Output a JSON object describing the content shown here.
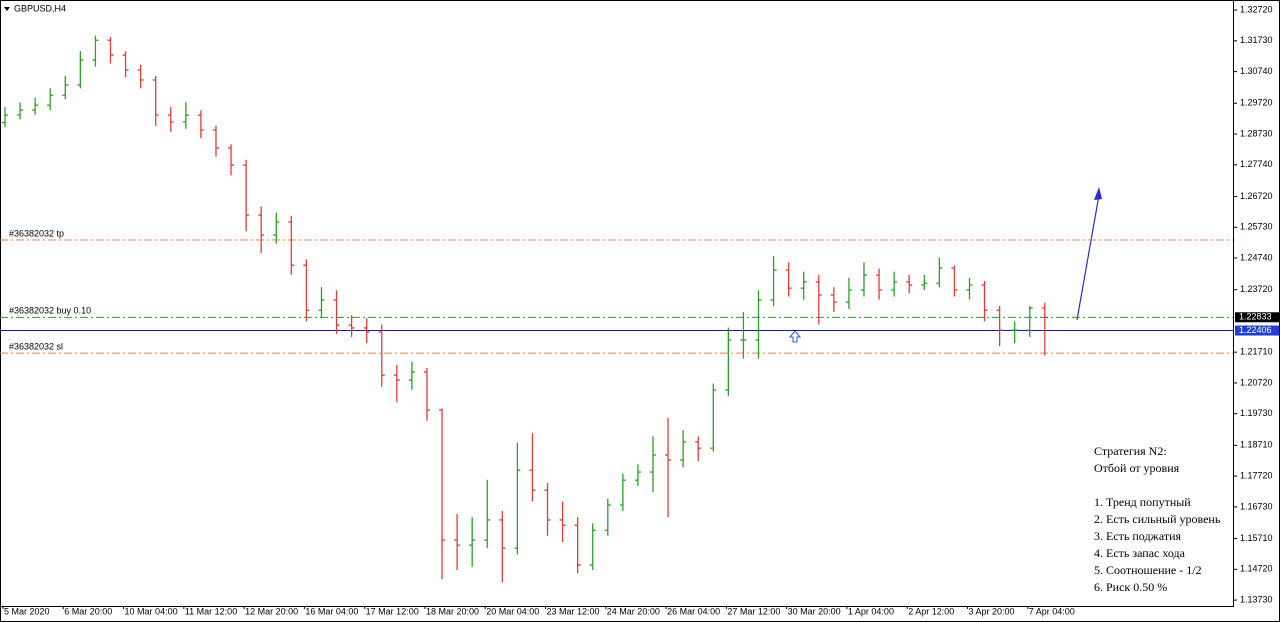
{
  "chart_data": {
    "type": "ohlc",
    "title": "GBPUSD,H4",
    "up_color": "#2e9e2e",
    "down_color": "#e03c3c",
    "ylim": [
      1.1354,
      1.3298
    ],
    "yticks": [
      {
        "value": 1.3272,
        "label": "1.32720"
      },
      {
        "value": 1.3173,
        "label": "1.31730"
      },
      {
        "value": 1.3074,
        "label": "1.30740"
      },
      {
        "value": 1.2972,
        "label": "1.29720"
      },
      {
        "value": 1.2873,
        "label": "1.28730"
      },
      {
        "value": 1.2774,
        "label": "1.27740"
      },
      {
        "value": 1.2672,
        "label": "1.26720"
      },
      {
        "value": 1.2573,
        "label": "1.25730"
      },
      {
        "value": 1.2474,
        "label": "1.24740"
      },
      {
        "value": 1.2372,
        "label": "1.23720"
      },
      {
        "value": 1.2171,
        "label": "1.21710"
      },
      {
        "value": 1.2072,
        "label": "1.20720"
      },
      {
        "value": 1.1973,
        "label": "1.19730"
      },
      {
        "value": 1.1871,
        "label": "1.18710"
      },
      {
        "value": 1.1772,
        "label": "1.17720"
      },
      {
        "value": 1.1673,
        "label": "1.16730"
      },
      {
        "value": 1.1571,
        "label": "1.15710"
      },
      {
        "value": 1.1472,
        "label": "1.14720"
      },
      {
        "value": 1.1373,
        "label": "1.13730"
      }
    ],
    "categories": [
      "5 Mar 2020",
      null,
      null,
      null,
      "6 Mar 20:00",
      null,
      null,
      null,
      "10 Mar 04:00",
      null,
      null,
      null,
      "11 Mar 12:00",
      null,
      null,
      null,
      "12 Mar 20:00",
      null,
      null,
      null,
      "16 Mar 04:00",
      null,
      null,
      null,
      "17 Mar 12:00",
      null,
      null,
      null,
      "18 Mar 20:00",
      null,
      null,
      null,
      "20 Mar 04:00",
      null,
      null,
      null,
      "23 Mar 12:00",
      null,
      null,
      null,
      "24 Mar 20:00",
      null,
      null,
      null,
      "26 Mar 04:00",
      null,
      null,
      null,
      "27 Mar 12:00",
      null,
      null,
      null,
      "30 Mar 20:00",
      null,
      null,
      null,
      "1 Apr 04:00",
      null,
      null,
      null,
      "2 Apr 12:00",
      null,
      null,
      null,
      "3 Apr 20:00",
      null,
      null,
      null,
      "7 Apr 04:00",
      null
    ],
    "open": [
      1.291,
      1.2934,
      1.295,
      1.2966,
      1.2998,
      1.3031,
      1.3111,
      1.3175,
      1.3127,
      1.3079,
      1.3047,
      1.2934,
      1.2912,
      1.2934,
      1.2886,
      1.2828,
      1.2773,
      1.2612,
      1.2548,
      1.259,
      1.2451,
      1.2306,
      1.2339,
      1.2258,
      1.2249,
      1.2236,
      1.2097,
      1.2081,
      1.2107,
      1.1985,
      1.1566,
      1.155,
      1.1566,
      1.1631,
      1.154,
      1.1791,
      1.1727,
      1.1631,
      1.1614,
      1.1486,
      1.1598,
      1.1679,
      1.1759,
      1.1785,
      1.184,
      1.1824,
      1.1882,
      1.1862,
      1.2049,
      1.221,
      1.221,
      1.2339,
      1.2435,
      1.2377,
      1.2397,
      1.2355,
      1.2332,
      1.2371,
      1.2419,
      1.2371,
      1.2397,
      1.2387,
      1.2393,
      1.2442,
      1.2371,
      1.2387,
      1.2306,
      1.2242,
      1.2242,
      1.2313
    ],
    "high": [
      1.296,
      1.2975,
      1.299,
      1.302,
      1.306,
      1.314,
      1.319,
      1.3185,
      1.314,
      1.3095,
      1.306,
      1.296,
      1.2975,
      1.295,
      1.29,
      1.284,
      1.279,
      1.264,
      1.262,
      1.261,
      1.247,
      1.238,
      1.237,
      1.229,
      1.228,
      1.226,
      1.213,
      1.214,
      1.212,
      1.199,
      1.165,
      1.164,
      1.176,
      1.166,
      1.188,
      1.191,
      1.175,
      1.169,
      1.164,
      1.162,
      1.17,
      1.178,
      1.181,
      1.19,
      1.196,
      1.192,
      1.19,
      1.207,
      1.225,
      1.23,
      1.237,
      1.248,
      1.246,
      1.243,
      1.242,
      1.238,
      1.241,
      1.246,
      1.244,
      1.243,
      1.242,
      1.242,
      1.2475,
      1.245,
      1.241,
      1.24,
      1.232,
      1.227,
      1.232,
      1.233
    ],
    "low": [
      1.2895,
      1.292,
      1.2935,
      1.295,
      1.2985,
      1.302,
      1.309,
      1.31,
      1.3055,
      1.302,
      1.29,
      1.288,
      1.289,
      1.286,
      1.28,
      1.274,
      1.256,
      1.249,
      1.252,
      1.242,
      1.227,
      1.228,
      1.223,
      1.222,
      1.22,
      1.206,
      1.201,
      1.205,
      1.195,
      1.144,
      1.147,
      1.148,
      1.154,
      1.143,
      1.152,
      1.169,
      1.158,
      1.156,
      1.146,
      1.147,
      1.158,
      1.166,
      1.174,
      1.172,
      1.164,
      1.18,
      1.182,
      1.185,
      1.203,
      1.215,
      1.215,
      1.232,
      1.235,
      1.234,
      1.226,
      1.23,
      1.231,
      1.235,
      1.234,
      1.235,
      1.236,
      1.237,
      1.238,
      1.235,
      1.234,
      1.227,
      1.219,
      1.22,
      1.222,
      1.216
    ],
    "close": [
      1.2934,
      1.295,
      1.2966,
      1.2998,
      1.3031,
      1.3111,
      1.3175,
      1.3127,
      1.3079,
      1.3047,
      1.2934,
      1.2912,
      1.2934,
      1.2886,
      1.2828,
      1.2773,
      1.2612,
      1.2548,
      1.259,
      1.2451,
      1.2306,
      1.2339,
      1.2258,
      1.2249,
      1.2236,
      1.2097,
      1.2081,
      1.2107,
      1.1985,
      1.1566,
      1.155,
      1.1566,
      1.1631,
      1.154,
      1.1791,
      1.1727,
      1.1631,
      1.1614,
      1.1486,
      1.1598,
      1.1679,
      1.1759,
      1.1785,
      1.184,
      1.1824,
      1.1882,
      1.1862,
      1.2049,
      1.221,
      1.221,
      1.2339,
      1.2435,
      1.2377,
      1.2397,
      1.2355,
      1.2332,
      1.2371,
      1.2419,
      1.2371,
      1.2397,
      1.2387,
      1.2393,
      1.2442,
      1.2371,
      1.2387,
      1.2306,
      1.2242,
      1.2242,
      1.2313,
      1.2283
    ],
    "levels": [
      {
        "label": "#36382032 tp",
        "value": 1.2532,
        "color": "#f07e4a"
      },
      {
        "label": "#36382032 buy 0.10",
        "value": 1.2283,
        "color": "#2e9e2e"
      },
      {
        "label": "#36382032 sl",
        "value": 1.2168,
        "color": "#f07e4a"
      }
    ],
    "price_markers": [
      {
        "value": 1.22833,
        "label": "1.22833",
        "color": "#000000"
      },
      {
        "value": 1.22406,
        "label": "1.22406",
        "color": "#1f3fd0"
      }
    ],
    "notes": {
      "heading": [
        "Стратегия N2:",
        "Отбой от уровня"
      ],
      "items": [
        "1. Тренд попутный",
        "2. Есть сильный уровень",
        "3. Есть поджатия",
        "4. Есть запас хода",
        "5. Соотношение - 1/2",
        "6. Риск 0.50 %"
      ]
    }
  }
}
